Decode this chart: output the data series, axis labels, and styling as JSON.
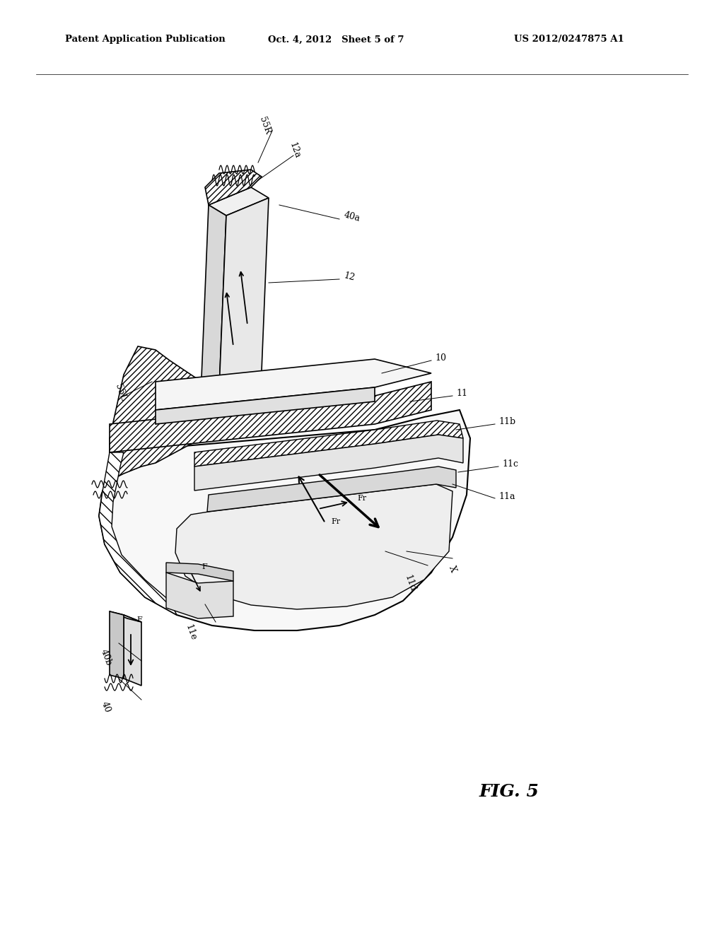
{
  "title_left": "Patent Application Publication",
  "title_center": "Oct. 4, 2012   Sheet 5 of 7",
  "title_right": "US 2012/0247875 A1",
  "fig_label": "FIG. 5",
  "background_color": "#ffffff",
  "text_color": "#000000"
}
